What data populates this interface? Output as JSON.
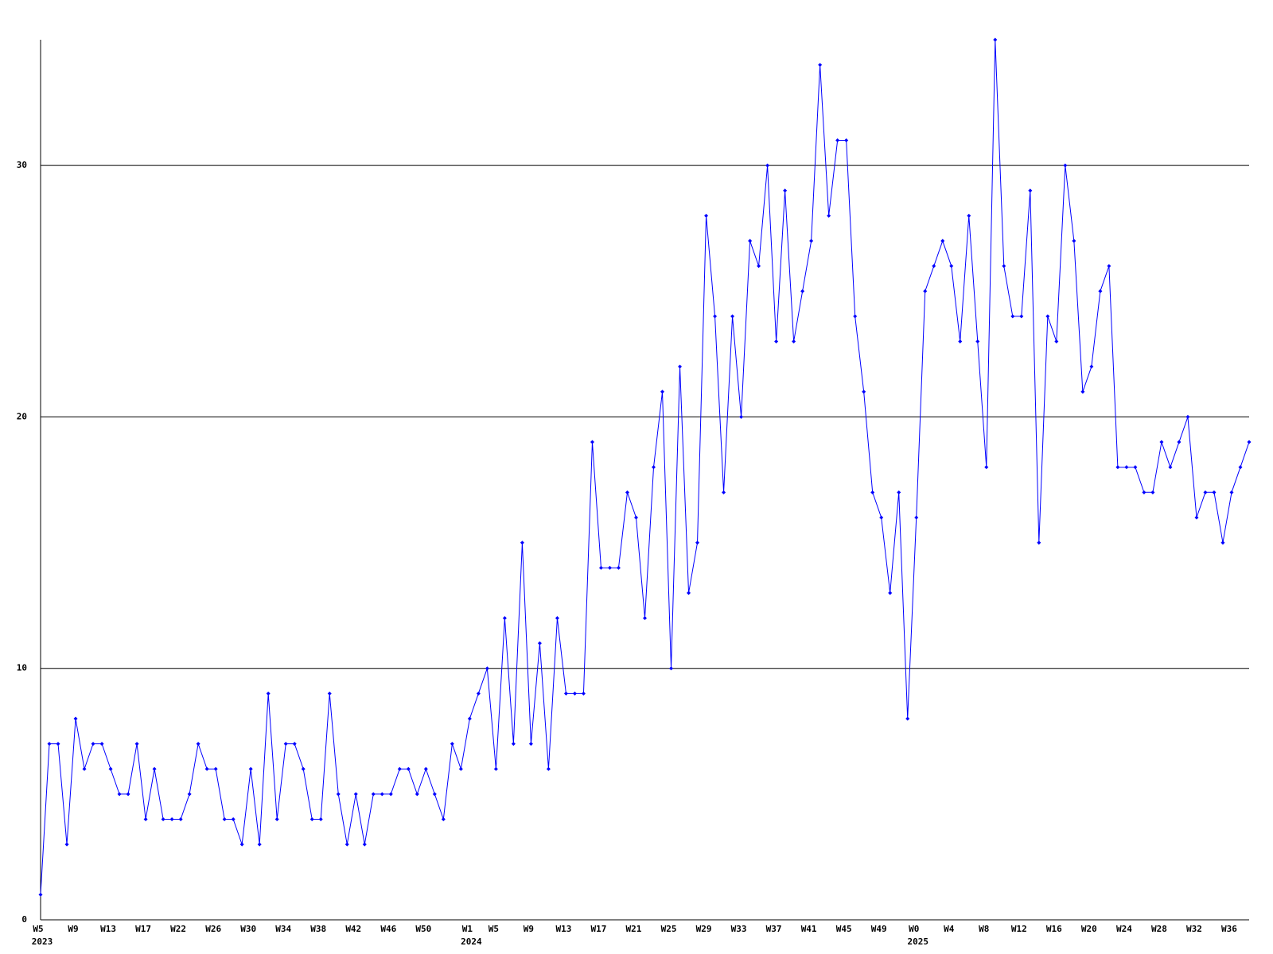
{
  "chart_data": {
    "type": "line",
    "color": "#0000ff",
    "grid": true,
    "ylim": [
      0,
      35
    ],
    "yticks": [
      0,
      10,
      20,
      30
    ],
    "categories": [
      "W5",
      null,
      null,
      null,
      "W9",
      null,
      null,
      null,
      "W13",
      null,
      null,
      null,
      "W17",
      null,
      null,
      null,
      "W22",
      null,
      null,
      null,
      "W26",
      null,
      null,
      null,
      "W30",
      null,
      null,
      null,
      "W34",
      null,
      null,
      null,
      "W38",
      null,
      null,
      null,
      "W42",
      null,
      null,
      null,
      "W46",
      null,
      null,
      null,
      "W50",
      null,
      null,
      null,
      null,
      "W1",
      null,
      null,
      "W5",
      null,
      null,
      null,
      "W9",
      null,
      null,
      null,
      "W13",
      null,
      null,
      null,
      "W17",
      null,
      null,
      null,
      "W21",
      null,
      null,
      null,
      "W25",
      null,
      null,
      null,
      "W29",
      null,
      null,
      null,
      "W33",
      null,
      null,
      null,
      "W37",
      null,
      null,
      null,
      "W41",
      null,
      null,
      null,
      "W45",
      null,
      null,
      null,
      "W49",
      null,
      null,
      null,
      "W0",
      null,
      null,
      null,
      "W4",
      null,
      null,
      null,
      "W8",
      null,
      null,
      null,
      "W12",
      null,
      null,
      null,
      "W16",
      null,
      null,
      null,
      "W20",
      null,
      null,
      null,
      "W24",
      null,
      null,
      null,
      "W28",
      null,
      null,
      null,
      "W32",
      null,
      null,
      null,
      "W36",
      null,
      null
    ],
    "years": [
      "2023",
      null,
      null,
      null,
      null,
      null,
      null,
      null,
      null,
      null,
      null,
      null,
      null,
      null,
      null,
      null,
      null,
      null,
      null,
      null,
      null,
      null,
      null,
      null,
      null,
      null,
      null,
      null,
      null,
      null,
      null,
      null,
      null,
      null,
      null,
      null,
      null,
      null,
      null,
      null,
      null,
      null,
      null,
      null,
      null,
      null,
      null,
      null,
      null,
      "2024",
      null,
      null,
      null,
      null,
      null,
      null,
      null,
      null,
      null,
      null,
      null,
      null,
      null,
      null,
      null,
      null,
      null,
      null,
      null,
      null,
      null,
      null,
      null,
      null,
      null,
      null,
      null,
      null,
      null,
      null,
      null,
      null,
      null,
      null,
      null,
      null,
      null,
      null,
      null,
      null,
      null,
      null,
      null,
      null,
      null,
      null,
      null,
      null,
      null,
      null,
      "2025",
      null,
      null,
      null,
      null,
      null,
      null,
      null,
      null,
      null,
      null,
      null,
      null,
      null,
      null,
      null,
      null,
      null,
      null,
      null,
      null,
      null,
      null,
      null,
      null,
      null,
      null,
      null,
      null,
      null,
      null,
      null,
      null,
      null,
      null,
      null,
      null,
      null,
      null
    ],
    "values": [
      1,
      7,
      7,
      3,
      8,
      6,
      7,
      7,
      6,
      5,
      5,
      7,
      4,
      6,
      4,
      4,
      4,
      5,
      7,
      6,
      6,
      4,
      4,
      3,
      6,
      3,
      9,
      4,
      7,
      7,
      6,
      4,
      4,
      9,
      5,
      3,
      5,
      3,
      5,
      5,
      5,
      6,
      6,
      5,
      6,
      5,
      4,
      7,
      6,
      8,
      9,
      10,
      6,
      12,
      7,
      15,
      7,
      11,
      6,
      12,
      9,
      9,
      9,
      19,
      14,
      14,
      14,
      17,
      16,
      12,
      18,
      21,
      10,
      22,
      13,
      15,
      28,
      24,
      17,
      24,
      20,
      27,
      26,
      30,
      23,
      29,
      23,
      25,
      27,
      34,
      28,
      31,
      31,
      24,
      21,
      17,
      16,
      13,
      17,
      8,
      16,
      25,
      26,
      27,
      26,
      23,
      28,
      23,
      18,
      35,
      26,
      24,
      24,
      29,
      15,
      24,
      23,
      30,
      27,
      21,
      22,
      25,
      26,
      18,
      18,
      18,
      17,
      17,
      19,
      18,
      19,
      20,
      16,
      17,
      17,
      15,
      17,
      18,
      19
    ]
  }
}
